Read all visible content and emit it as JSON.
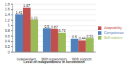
{
  "chart_data": {
    "type": "bar",
    "x_label": "Level of independence in locomotion",
    "categories": [
      "Independent",
      "With supervision",
      "With support"
    ],
    "series": [
      {
        "name": "Competence",
        "color": "#4f81bd",
        "values": [
          1.42,
          0.9,
          0.5
        ]
      },
      {
        "name": "Adaptability",
        "color": "#c0504d",
        "values": [
          1.67,
          0.87,
          0.44
        ]
      },
      {
        "name": "Self-esteem",
        "color": "#9bbb59",
        "values": [
          1.21,
          0.73,
          0.53
        ]
      }
    ],
    "ylim": [
      0,
      1.8
    ],
    "yticks": [
      0,
      0.2,
      0.4,
      0.6,
      0.8,
      1,
      1.2,
      1.4,
      1.6,
      1.8
    ],
    "grid": true,
    "legend": "right",
    "data_labels": true
  }
}
